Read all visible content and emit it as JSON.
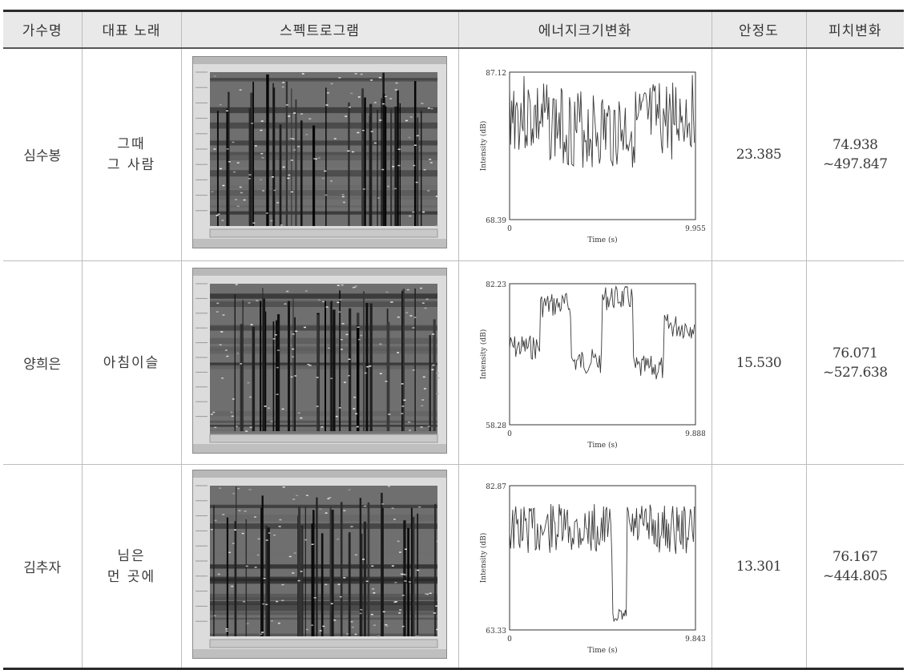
{
  "table": {
    "headers": [
      "가수명",
      "대표 노래",
      "스펙트로그램",
      "에너지크기변화",
      "안정도",
      "피치변화"
    ],
    "rows": [
      {
        "singer": "심수봉",
        "song": "그때\n그 사람",
        "stability": "23.385",
        "pitch": "74.938\n~497.847",
        "energy": {
          "y_max_label": "87.12",
          "y_min_label": "68.39",
          "x_start_label": "0",
          "x_end_label": "9.955",
          "x_label": "Time (s)",
          "y_label": "Intensity (dB)"
        }
      },
      {
        "singer": "양희은",
        "song": "아침이슬",
        "stability": "15.530",
        "pitch": "76.071\n~527.638",
        "energy": {
          "y_max_label": "82.23",
          "y_min_label": "58.28",
          "x_start_label": "0",
          "x_end_label": "9.888",
          "x_label": "Time (s)",
          "y_label": "Intensity (dB)"
        }
      },
      {
        "singer": "김추자",
        "song": "님은\n먼 곳에",
        "stability": "13.301",
        "pitch": "76.167\n~444.805",
        "energy": {
          "y_max_label": "82.87",
          "y_min_label": "63.33",
          "x_start_label": "0",
          "x_end_label": "9.843",
          "x_label": "Time (s)",
          "y_label": "Intensity (dB)"
        }
      }
    ]
  }
}
